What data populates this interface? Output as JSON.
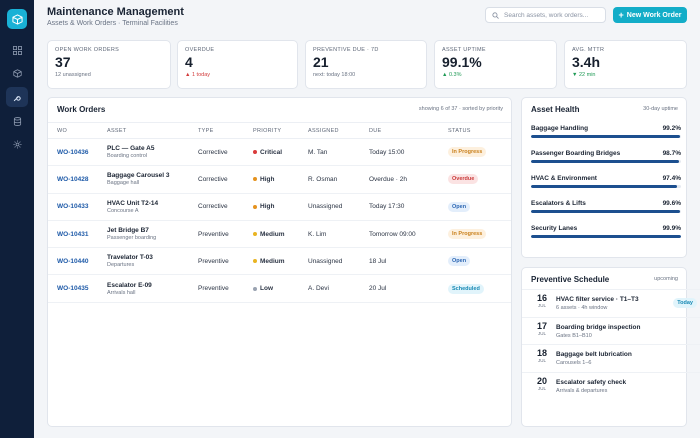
{
  "header": {
    "title": "Maintenance Management",
    "subtitle": "Assets & Work Orders · Terminal Facilities",
    "search_placeholder": "Search assets, work orders...",
    "new_button": "New Work Order"
  },
  "sidebar": {
    "logo_icon": "cube-logo-icon",
    "items": [
      {
        "icon": "grid-icon",
        "active": false
      },
      {
        "icon": "box-icon",
        "active": false
      },
      {
        "icon": "wrench-icon",
        "active": true
      },
      {
        "icon": "database-icon",
        "active": false
      },
      {
        "icon": "settings-icon",
        "active": false
      }
    ]
  },
  "kpis": [
    {
      "label": "Open Work Orders",
      "value": "37",
      "note": "12 unassigned",
      "tone": "neutral"
    },
    {
      "label": "Overdue",
      "value": "4",
      "note": "▲ 1 today",
      "tone": "red"
    },
    {
      "label": "Preventive Due · 7D",
      "value": "21",
      "note": "next: today 18:00",
      "tone": "neutral"
    },
    {
      "label": "Asset Uptime",
      "value": "99.1%",
      "note": "▲ 0.3%",
      "tone": "green"
    },
    {
      "label": "Avg. MTTR",
      "value": "3.4h",
      "note": "▼ 22 min",
      "tone": "green"
    }
  ],
  "work_orders": {
    "title": "Work Orders",
    "meta": "showing 6 of 37 · sorted by priority",
    "columns": [
      "WO",
      "ASSET",
      "TYPE",
      "PRIORITY",
      "ASSIGNED",
      "DUE",
      "STATUS"
    ],
    "rows": [
      {
        "id": "WO-10436",
        "asset": "PLC — Gate A5",
        "location": "Boarding control",
        "type": "Corrective",
        "priority": "Critical",
        "priority_color": "#d93b3b",
        "assigned": "M. Tan",
        "due": "Today 15:00",
        "status": "In Progress",
        "status_bg": "#fdf0de",
        "status_fg": "#c9801c"
      },
      {
        "id": "WO-10428",
        "asset": "Baggage Carousel 3",
        "location": "Baggage hall",
        "type": "Corrective",
        "priority": "High",
        "priority_color": "#e5921e",
        "assigned": "R. Osman",
        "due": "Overdue · 2h",
        "status": "Overdue",
        "status_bg": "#fbe3e3",
        "status_fg": "#c93a3a"
      },
      {
        "id": "WO-10433",
        "asset": "HVAC Unit T2-14",
        "location": "Concourse A",
        "type": "Corrective",
        "priority": "High",
        "priority_color": "#e5921e",
        "assigned": "Unassigned",
        "due": "Today 17:30",
        "status": "Open",
        "status_bg": "#e3eefb",
        "status_fg": "#2b66b3"
      },
      {
        "id": "WO-10431",
        "asset": "Jet Bridge B7",
        "location": "Passenger boarding",
        "type": "Preventive",
        "priority": "Medium",
        "priority_color": "#e9b422",
        "assigned": "K. Lim",
        "due": "Tomorrow 09:00",
        "status": "In Progress",
        "status_bg": "#fdf0de",
        "status_fg": "#c9801c"
      },
      {
        "id": "WO-10440",
        "asset": "Travelator T-03",
        "location": "Departures",
        "type": "Preventive",
        "priority": "Medium",
        "priority_color": "#e9b422",
        "assigned": "Unassigned",
        "due": "18 Jul",
        "status": "Open",
        "status_bg": "#e3eefb",
        "status_fg": "#2b66b3"
      },
      {
        "id": "WO-10435",
        "asset": "Escalator E-09",
        "location": "Arrivals hall",
        "type": "Preventive",
        "priority": "Low",
        "priority_color": "#9aa3b1",
        "assigned": "A. Devi",
        "due": "20 Jul",
        "status": "Scheduled",
        "status_bg": "#e1f4fb",
        "status_fg": "#1688b3"
      }
    ]
  },
  "asset_health": {
    "title": "Asset Health",
    "meta": "30-day uptime",
    "items": [
      {
        "name": "Baggage Handling",
        "value": "99.2%",
        "pct": 99.2
      },
      {
        "name": "Passenger Boarding Bridges",
        "value": "98.7%",
        "pct": 98.7
      },
      {
        "name": "HVAC & Environment",
        "value": "97.4%",
        "pct": 97.4
      },
      {
        "name": "Escalators & Lifts",
        "value": "99.6%",
        "pct": 99.6
      },
      {
        "name": "Security Lanes",
        "value": "99.9%",
        "pct": 99.9
      }
    ]
  },
  "schedule": {
    "title": "Preventive Schedule",
    "meta": "upcoming",
    "items": [
      {
        "day": "16",
        "month": "JUL",
        "title": "HVAC filter service · T1–T3",
        "sub": "6 assets · 4h window",
        "tag": "Today"
      },
      {
        "day": "17",
        "month": "JUL",
        "title": "Boarding bridge inspection",
        "sub": "Gates B1–B10",
        "tag": ""
      },
      {
        "day": "18",
        "month": "JUL",
        "title": "Baggage belt lubrication",
        "sub": "Carousels 1–6",
        "tag": ""
      },
      {
        "day": "20",
        "month": "JUL",
        "title": "Escalator safety check",
        "sub": "Arrivals & departures",
        "tag": ""
      }
    ]
  }
}
